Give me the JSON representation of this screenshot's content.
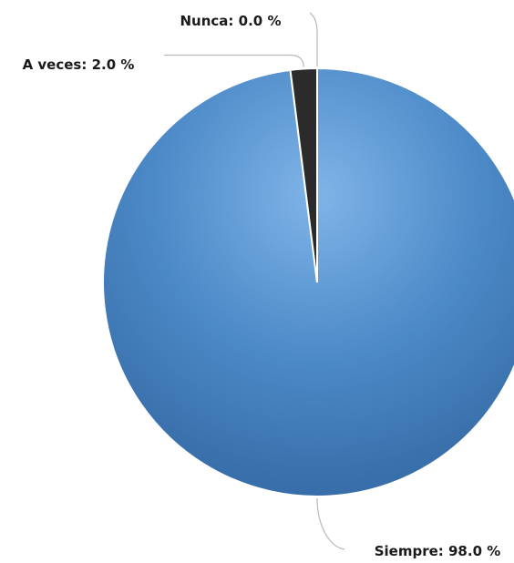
{
  "chart_data": {
    "type": "pie",
    "title": "",
    "slices": [
      {
        "label": "Siempre: 98.0 %",
        "name": "Siempre",
        "value": 98.0,
        "color": "#4e8ccb"
      },
      {
        "label": "A veces: 2.0 %",
        "name": "A veces",
        "value": 2.0,
        "color": "#2b2b2b"
      },
      {
        "label": "Nunca: 0.0 %",
        "name": "Nunca",
        "value": 0.0,
        "color": "#9fc5ea"
      }
    ],
    "unit": "%",
    "legend": "none"
  }
}
